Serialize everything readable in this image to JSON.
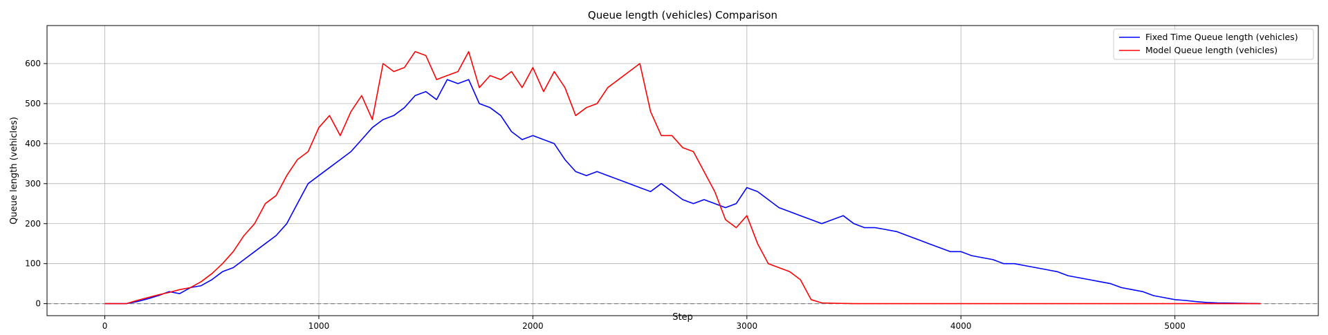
{
  "chart_data": {
    "type": "line",
    "title": "Queue length (vehicles) Comparison",
    "xlabel": "Step",
    "ylabel": "Queue length (vehicles)",
    "xlim": [
      -270,
      5670
    ],
    "ylim": [
      -30,
      695
    ],
    "xticks": [
      0,
      1000,
      2000,
      3000,
      4000,
      5000
    ],
    "xtick_labels": [
      "0",
      "1000",
      "2000",
      "3000",
      "4000",
      "5000"
    ],
    "yticks": [
      0,
      100,
      200,
      300,
      400,
      500,
      600
    ],
    "ytick_labels": [
      "0",
      "100",
      "200",
      "300",
      "400",
      "500",
      "600"
    ],
    "grid": true,
    "legend_position": "top-right",
    "reference_line": {
      "y": 0,
      "style": "dashed",
      "color": "#808080"
    },
    "series": [
      {
        "name": "Fixed Time Queue length (vehicles)",
        "color": "#0000ff",
        "x": [
          0,
          100,
          150,
          200,
          250,
          300,
          350,
          400,
          450,
          500,
          550,
          600,
          650,
          700,
          750,
          800,
          850,
          900,
          950,
          1000,
          1050,
          1100,
          1150,
          1200,
          1250,
          1300,
          1350,
          1400,
          1450,
          1500,
          1550,
          1600,
          1650,
          1700,
          1750,
          1800,
          1850,
          1900,
          1950,
          2000,
          2050,
          2100,
          2150,
          2200,
          2250,
          2300,
          2350,
          2400,
          2450,
          2500,
          2550,
          2600,
          2650,
          2700,
          2750,
          2800,
          2850,
          2900,
          2950,
          3000,
          3050,
          3100,
          3150,
          3200,
          3250,
          3300,
          3350,
          3400,
          3450,
          3500,
          3550,
          3600,
          3650,
          3700,
          3750,
          3800,
          3850,
          3900,
          3950,
          4000,
          4050,
          4100,
          4150,
          4200,
          4250,
          4300,
          4350,
          4400,
          4450,
          4500,
          4550,
          4600,
          4650,
          4700,
          4750,
          4800,
          4850,
          4900,
          4950,
          5000,
          5050,
          5100,
          5150,
          5200,
          5300,
          5400
        ],
        "y": [
          0,
          0,
          5,
          12,
          20,
          30,
          25,
          40,
          45,
          60,
          80,
          90,
          110,
          130,
          150,
          170,
          200,
          250,
          300,
          320,
          340,
          360,
          380,
          410,
          440,
          460,
          470,
          490,
          520,
          530,
          510,
          560,
          550,
          560,
          500,
          490,
          470,
          430,
          410,
          420,
          410,
          400,
          360,
          330,
          320,
          330,
          320,
          310,
          300,
          290,
          280,
          300,
          280,
          260,
          250,
          260,
          250,
          240,
          250,
          290,
          280,
          260,
          240,
          230,
          220,
          210,
          200,
          210,
          220,
          200,
          190,
          190,
          185,
          180,
          170,
          160,
          150,
          140,
          130,
          130,
          120,
          115,
          110,
          100,
          100,
          95,
          90,
          85,
          80,
          70,
          65,
          60,
          55,
          50,
          40,
          35,
          30,
          20,
          15,
          10,
          8,
          5,
          3,
          2,
          1,
          0
        ]
      },
      {
        "name": "Model Queue length (vehicles)",
        "color": "#ff0000",
        "x": [
          0,
          100,
          150,
          200,
          250,
          300,
          350,
          400,
          450,
          500,
          550,
          600,
          650,
          700,
          750,
          800,
          850,
          900,
          950,
          1000,
          1050,
          1100,
          1150,
          1200,
          1250,
          1300,
          1350,
          1400,
          1450,
          1500,
          1550,
          1600,
          1650,
          1700,
          1750,
          1800,
          1850,
          1900,
          1950,
          2000,
          2050,
          2100,
          2150,
          2200,
          2250,
          2300,
          2350,
          2400,
          2450,
          2500,
          2550,
          2600,
          2650,
          2700,
          2750,
          2800,
          2850,
          2900,
          2950,
          3000,
          3050,
          3100,
          3150,
          3200,
          3250,
          3300,
          3350,
          3400,
          3500,
          3600,
          3700,
          3800,
          4000,
          4500,
          5000,
          5400
        ],
        "y": [
          0,
          0,
          8,
          15,
          22,
          28,
          35,
          40,
          55,
          75,
          100,
          130,
          170,
          200,
          250,
          270,
          320,
          360,
          380,
          440,
          470,
          420,
          480,
          520,
          460,
          600,
          580,
          590,
          630,
          620,
          560,
          570,
          580,
          630,
          540,
          570,
          560,
          580,
          540,
          590,
          530,
          580,
          540,
          470,
          490,
          500,
          540,
          560,
          580,
          600,
          480,
          420,
          420,
          390,
          380,
          330,
          280,
          210,
          190,
          220,
          150,
          100,
          90,
          80,
          60,
          10,
          2,
          1,
          0,
          0,
          0,
          0,
          0,
          0,
          0,
          0
        ]
      }
    ]
  }
}
